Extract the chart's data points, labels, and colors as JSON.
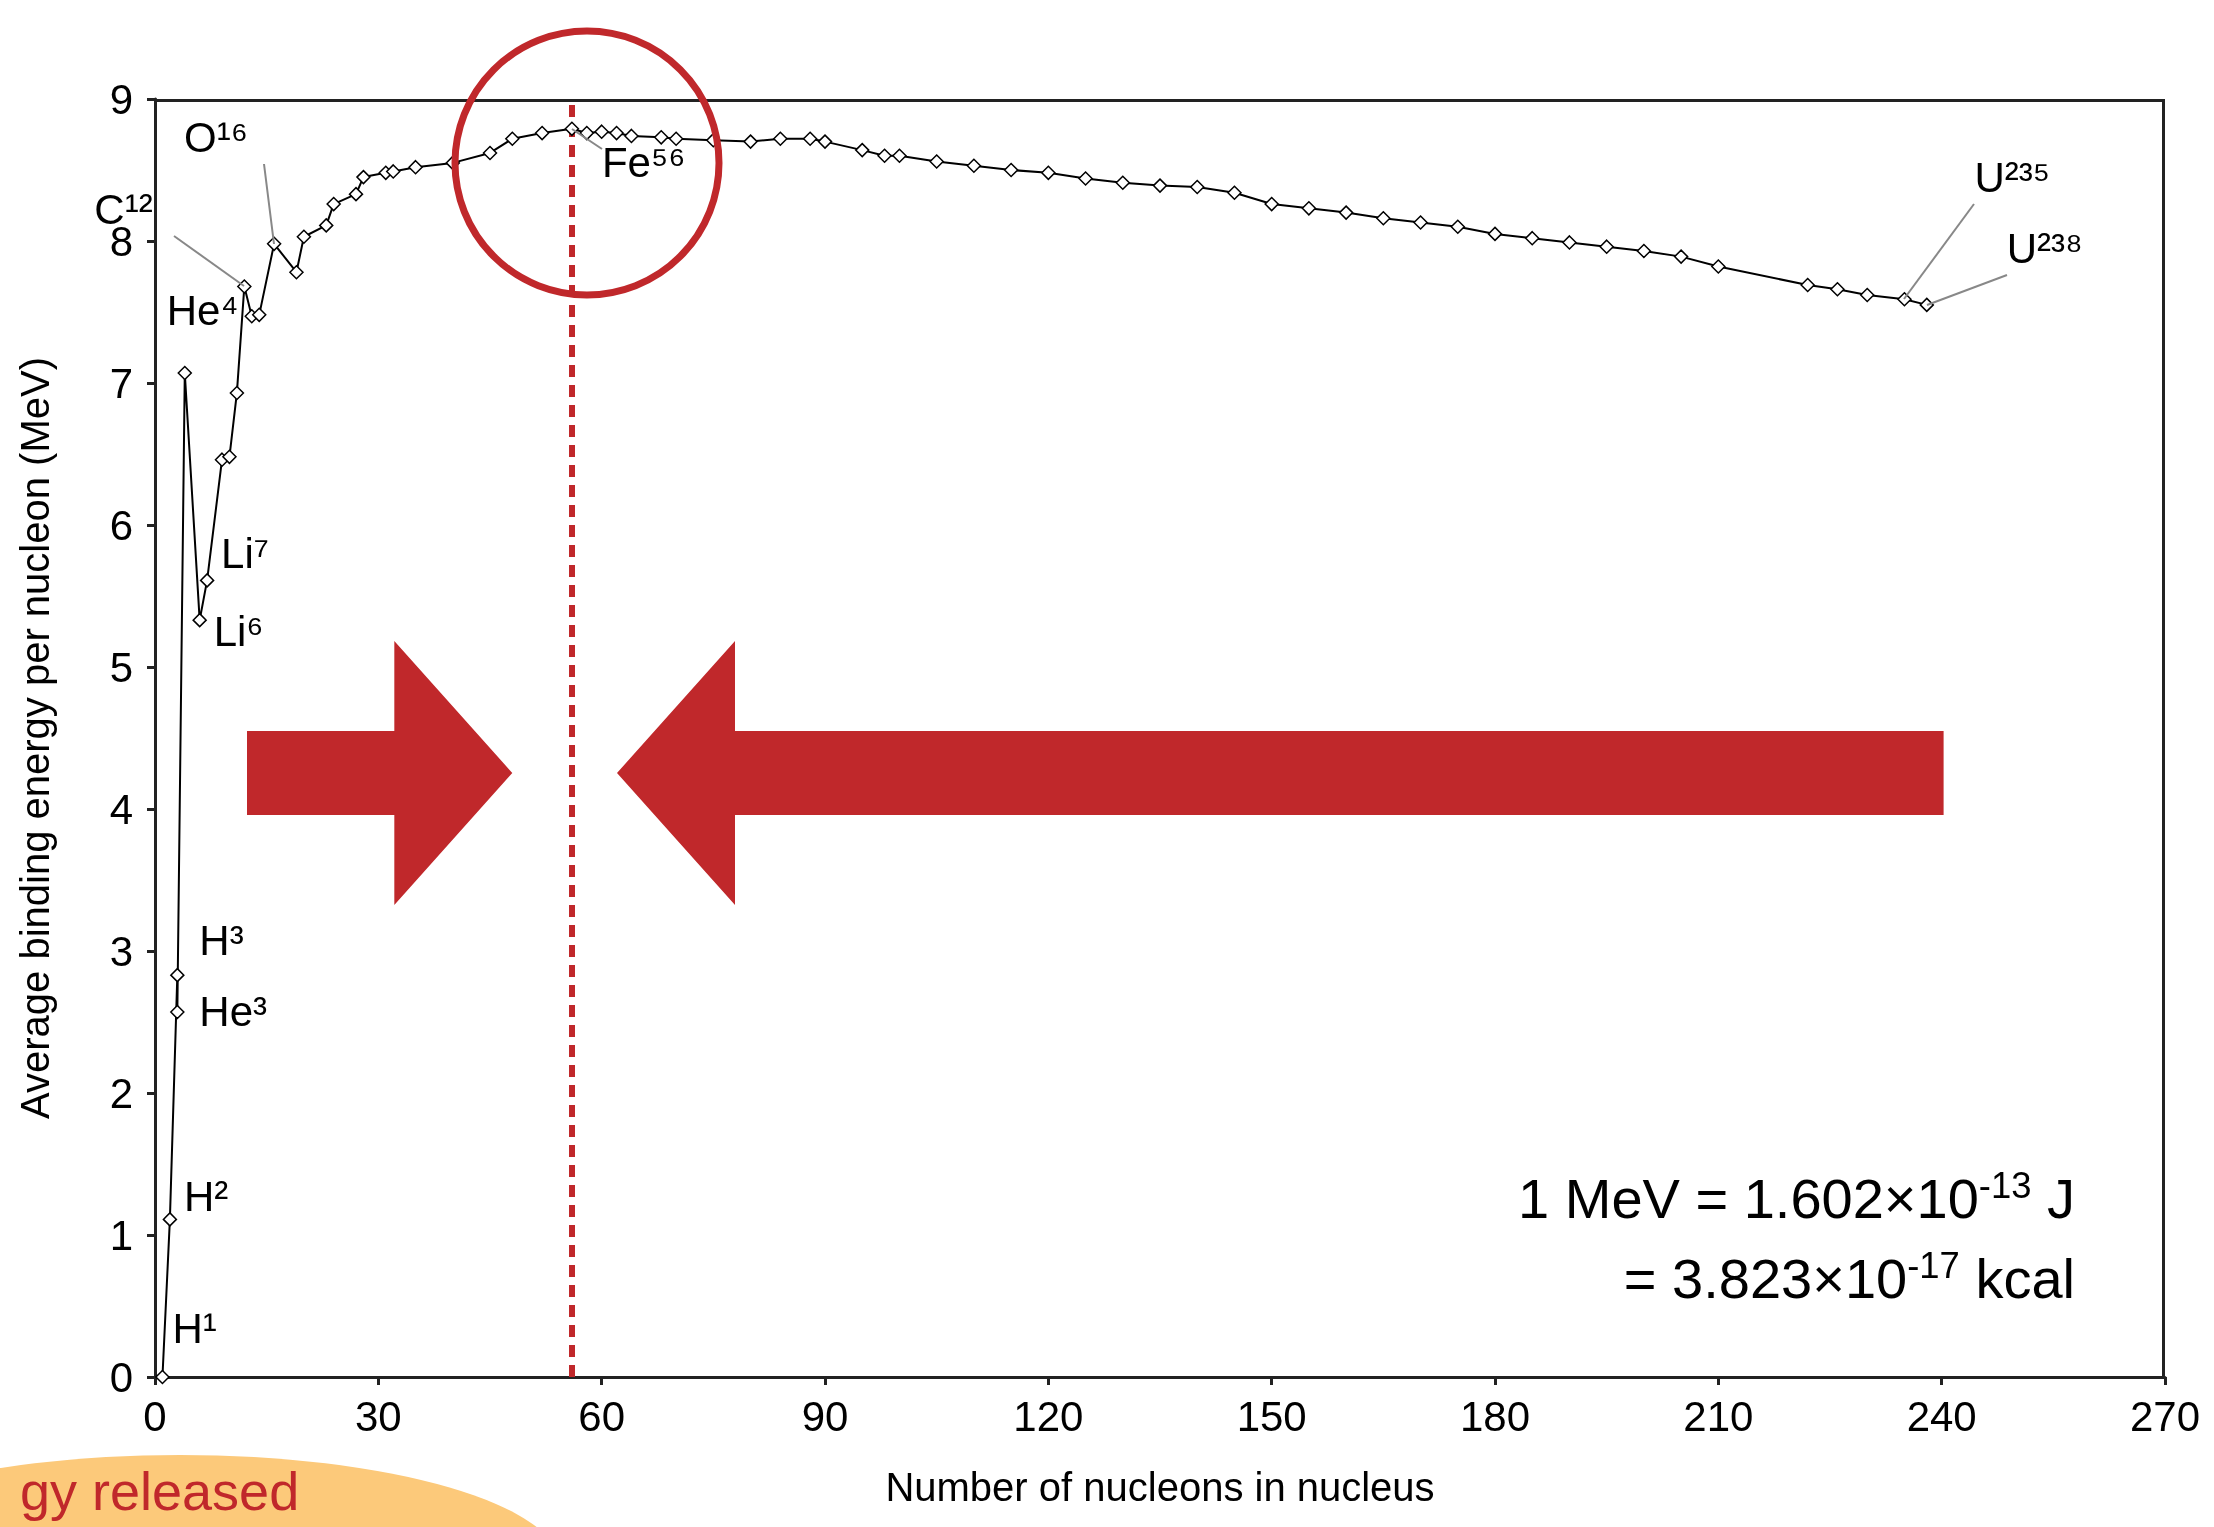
{
  "chart_data": {
    "type": "line",
    "xlabel": "Number of nucleons in nucleus",
    "ylabel": "Average binding energy per nucleon (MeV)",
    "x": [
      1,
      2,
      3,
      3,
      4,
      6,
      7,
      9,
      10,
      11,
      12,
      13,
      14,
      16,
      19,
      20,
      23,
      24,
      27,
      28,
      31,
      32,
      35,
      40,
      45,
      48,
      52,
      56,
      58,
      60,
      62,
      64,
      68,
      70,
      75,
      80,
      84,
      88,
      90,
      95,
      98,
      100,
      105,
      110,
      115,
      120,
      125,
      130,
      135,
      140,
      145,
      150,
      155,
      160,
      165,
      170,
      175,
      180,
      185,
      190,
      195,
      200,
      205,
      210,
      222,
      226,
      230,
      235,
      238
    ],
    "series": [
      {
        "color": "#000000",
        "values": [
          0,
          1.11,
          2.83,
          2.57,
          7.07,
          5.33,
          5.61,
          6.46,
          6.48,
          6.93,
          7.68,
          7.47,
          7.48,
          7.98,
          7.78,
          8.03,
          8.11,
          8.26,
          8.33,
          8.45,
          8.48,
          8.49,
          8.52,
          8.55,
          8.62,
          8.72,
          8.76,
          8.79,
          8.76,
          8.77,
          8.76,
          8.74,
          8.73,
          8.72,
          8.71,
          8.7,
          8.72,
          8.72,
          8.7,
          8.64,
          8.6,
          8.6,
          8.56,
          8.53,
          8.5,
          8.48,
          8.44,
          8.41,
          8.39,
          8.38,
          8.34,
          8.26,
          8.23,
          8.2,
          8.16,
          8.13,
          8.1,
          8.05,
          8.02,
          7.99,
          7.96,
          7.93,
          7.89,
          7.82,
          7.69,
          7.66,
          7.62,
          7.59,
          7.55
        ]
      }
    ],
    "xlim": [
      0,
      270
    ],
    "xticks": [
      0,
      30,
      60,
      90,
      120,
      150,
      180,
      210,
      240,
      270
    ],
    "ylim": [
      0,
      9
    ],
    "yticks": [
      0,
      1,
      2,
      3,
      4,
      5,
      6,
      7,
      8,
      9
    ],
    "grid": false,
    "marker": "diamond",
    "line_style": "solid",
    "ref_lines": [
      {
        "axis": "x",
        "value": 56,
        "color": "#c0282b",
        "line_style": "dashed"
      }
    ],
    "annotations": [
      {
        "text": "H¹",
        "x": 1,
        "y": 0
      },
      {
        "text": "H²",
        "x": 2,
        "y": 1.11
      },
      {
        "text": "H³",
        "x": 3,
        "y": 2.83
      },
      {
        "text": "He³",
        "x": 3,
        "y": 2.57
      },
      {
        "text": "He⁴",
        "x": 4,
        "y": 7.07
      },
      {
        "text": "Li⁶",
        "x": 6,
        "y": 5.33
      },
      {
        "text": "Li⁷",
        "x": 7,
        "y": 5.61
      },
      {
        "text": "C¹²",
        "x": 12,
        "y": 7.68
      },
      {
        "text": "O¹⁶",
        "x": 16,
        "y": 7.98
      },
      {
        "text": "Fe⁵⁶",
        "x": 56,
        "y": 8.79
      },
      {
        "text": "U²³⁵",
        "x": 235,
        "y": 7.59
      },
      {
        "text": "U²³⁸",
        "x": 238,
        "y": 7.55
      },
      "1 MeV = 1.602×10$^{-13}$ J",
      "= 3.823×10$^{-17}$ kcal",
      "gy released"
    ]
  }
}
